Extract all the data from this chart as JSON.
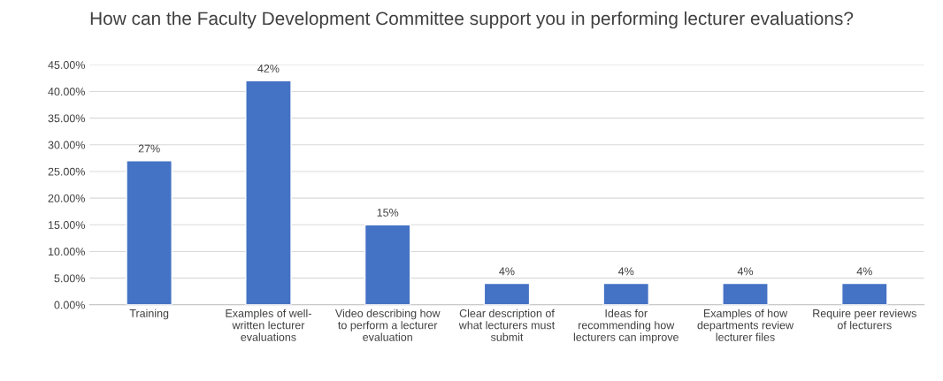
{
  "chart_data": {
    "type": "bar",
    "title": "How can the Faculty Development Committee support you in performing lecturer evaluations?",
    "categories": [
      "Training",
      "Examples of well-\nwritten lecturer\nevaluations",
      "Video describing how\nto perform a lecturer\nevaluation",
      "Clear description of\nwhat lecturers must\nsubmit",
      "Ideas for\nrecommending how\nlecturers can improve",
      "Examples of how\ndepartments review\nlecturer files",
      "Require peer reviews\nof lecturers"
    ],
    "values": [
      27,
      42,
      15,
      4,
      4,
      4,
      4
    ],
    "value_labels": [
      "27%",
      "42%",
      "15%",
      "4%",
      "4%",
      "4%",
      "4%"
    ],
    "color": "#4472c4",
    "ylim": [
      0,
      45
    ],
    "yticks": [
      {
        "value": 0,
        "label": "0.00%"
      },
      {
        "value": 5,
        "label": "5.00%"
      },
      {
        "value": 10,
        "label": "10.00%"
      },
      {
        "value": 15,
        "label": "15.00%"
      },
      {
        "value": 20,
        "label": "20.00%"
      },
      {
        "value": 25,
        "label": "25.00%"
      },
      {
        "value": 30,
        "label": "30.00%"
      },
      {
        "value": 35,
        "label": "35.00%"
      },
      {
        "value": 40,
        "label": "40.00%"
      },
      {
        "value": 45,
        "label": "45.00%"
      }
    ],
    "grid": "y",
    "legend": false
  }
}
